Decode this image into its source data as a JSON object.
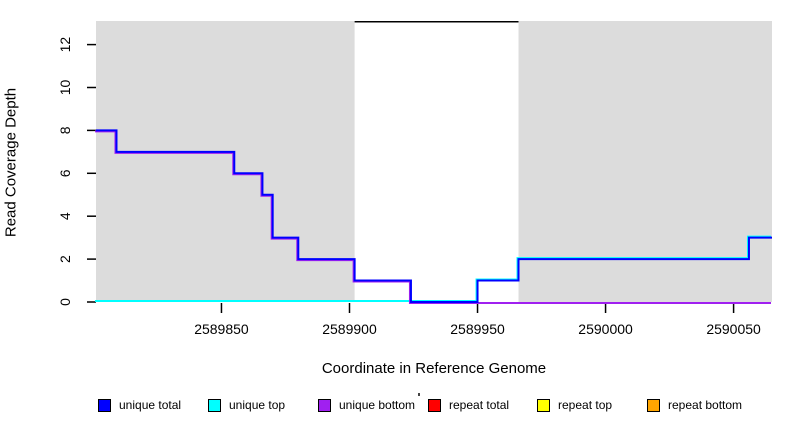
{
  "chart_data": {
    "type": "line",
    "subtype": "step",
    "title": "",
    "xlabel": "Coordinate in Reference Genome",
    "ylabel": "Read Coverage Depth",
    "xlim": [
      2589801,
      2590065
    ],
    "ylim": [
      0,
      13.1
    ],
    "x_ticks": [
      2589850,
      2589900,
      2589950,
      2590000,
      2590050
    ],
    "y_ticks": [
      0,
      2,
      4,
      6,
      8,
      10,
      12
    ],
    "grid": false,
    "legend_position": "bottom",
    "plot_background": "#dcdcdc",
    "outer_background": "#ffffff",
    "repeat_region": {
      "start": 2589902,
      "end": 2589966,
      "fill": "#ffffff",
      "top_border_color": "#000000",
      "top_border_y": 13.1
    },
    "series": [
      {
        "name": "unique total",
        "color": "#0000ff",
        "points": [
          [
            2589801,
            8
          ],
          [
            2589809,
            8
          ],
          [
            2589809,
            7
          ],
          [
            2589855,
            7
          ],
          [
            2589855,
            6
          ],
          [
            2589866,
            6
          ],
          [
            2589866,
            5
          ],
          [
            2589870,
            5
          ],
          [
            2589870,
            3
          ],
          [
            2589880,
            3
          ],
          [
            2589880,
            2
          ],
          [
            2589902,
            2
          ],
          [
            2589902,
            1
          ],
          [
            2589924,
            1
          ],
          [
            2589924,
            0
          ],
          [
            2589950,
            0
          ],
          [
            2589950,
            1
          ],
          [
            2589966,
            1
          ],
          [
            2589966,
            2
          ],
          [
            2590056,
            2
          ],
          [
            2590056,
            3
          ],
          [
            2590065,
            3
          ]
        ]
      },
      {
        "name": "unique top",
        "color": "#00ffff",
        "points": [
          [
            2589801,
            0
          ],
          [
            2589950,
            0
          ],
          [
            2589950,
            1
          ],
          [
            2589966,
            1
          ],
          [
            2589966,
            2
          ],
          [
            2590056,
            2
          ],
          [
            2590056,
            3
          ],
          [
            2590065,
            3
          ]
        ]
      },
      {
        "name": "unique bottom",
        "color": "#a020f0",
        "points": [
          [
            2589801,
            8
          ],
          [
            2589809,
            8
          ],
          [
            2589809,
            7
          ],
          [
            2589855,
            7
          ],
          [
            2589855,
            6
          ],
          [
            2589866,
            6
          ],
          [
            2589866,
            5
          ],
          [
            2589870,
            5
          ],
          [
            2589870,
            3
          ],
          [
            2589880,
            3
          ],
          [
            2589880,
            2
          ],
          [
            2589902,
            2
          ],
          [
            2589902,
            1
          ],
          [
            2589924,
            1
          ],
          [
            2589924,
            0
          ],
          [
            2590065,
            0
          ]
        ]
      },
      {
        "name": "repeat total",
        "color": "#ff0000",
        "points": []
      },
      {
        "name": "repeat top",
        "color": "#ffff00",
        "points": []
      },
      {
        "name": "repeat bottom",
        "color": "#ffa500",
        "points": []
      }
    ]
  },
  "legend": {
    "items": [
      {
        "label": "unique total",
        "color": "#0000ff"
      },
      {
        "label": "unique top",
        "color": "#00ffff"
      },
      {
        "label": "unique bottom",
        "color": "#a020f0"
      },
      {
        "label": "repeat total",
        "color": "#ff0000"
      },
      {
        "label": "repeat top",
        "color": "#ffff00"
      },
      {
        "label": "repeat bottom",
        "color": "#ffa500"
      }
    ]
  }
}
